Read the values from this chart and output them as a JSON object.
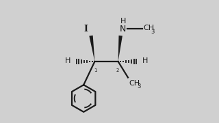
{
  "bg_color": "#d0d0d0",
  "line_color": "#1a1a1a",
  "text_color": "#1a1a1a",
  "figsize": [
    3.2,
    1.8
  ],
  "dpi": 100,
  "c1": [
    0.38,
    0.5
  ],
  "c2": [
    0.57,
    0.5
  ],
  "bond_lw": 1.6
}
